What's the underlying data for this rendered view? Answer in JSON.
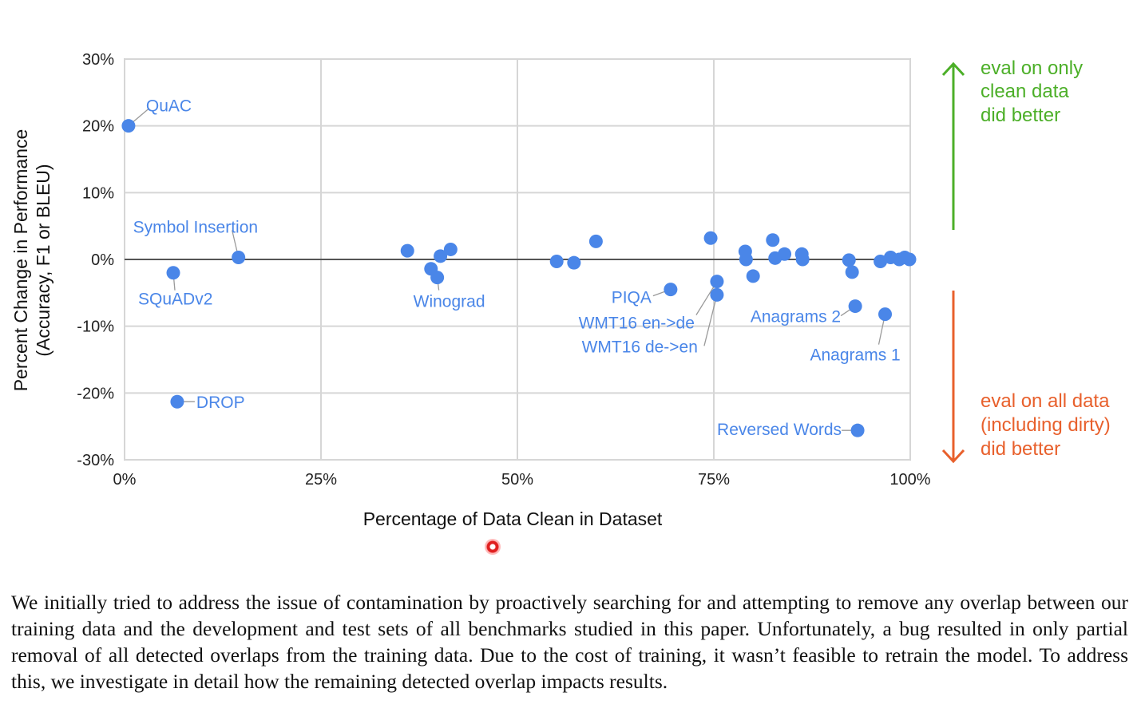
{
  "chart_data": {
    "type": "scatter",
    "xlabel": "Percentage of Data Clean in Dataset",
    "ylabel": "Percent Change in Performance",
    "ylabel2": "(Accuracy, F1 or BLEU)",
    "xlim": [
      0,
      100
    ],
    "ylim": [
      -30,
      30
    ],
    "x_ticks": [
      "0%",
      "25%",
      "50%",
      "75%",
      "100%"
    ],
    "y_ticks": [
      "30%",
      "20%",
      "10%",
      "0%",
      "-10%",
      "-20%",
      "-30%"
    ],
    "grid": true,
    "marker_color": "#4a86e8",
    "points": [
      {
        "x": 0.5,
        "y": 20.0,
        "label": "QuAC"
      },
      {
        "x": 14.5,
        "y": 0.3,
        "label": "Symbol Insertion"
      },
      {
        "x": 6.2,
        "y": -2.0,
        "label": "SQuADv2"
      },
      {
        "x": 6.7,
        "y": -21.3,
        "label": "DROP"
      },
      {
        "x": 36.0,
        "y": 1.3
      },
      {
        "x": 39.0,
        "y": -1.4
      },
      {
        "x": 39.8,
        "y": -2.7,
        "label": "Winograd"
      },
      {
        "x": 40.2,
        "y": 0.5
      },
      {
        "x": 41.5,
        "y": 1.5
      },
      {
        "x": 55.0,
        "y": -0.3
      },
      {
        "x": 57.2,
        "y": -0.5
      },
      {
        "x": 60.0,
        "y": 2.7
      },
      {
        "x": 69.5,
        "y": -4.5,
        "label": "PIQA"
      },
      {
        "x": 74.6,
        "y": 3.2
      },
      {
        "x": 75.4,
        "y": -3.3,
        "label": "WMT16 en->de"
      },
      {
        "x": 75.4,
        "y": -5.3,
        "label": "WMT16 de->en"
      },
      {
        "x": 79.0,
        "y": 1.2
      },
      {
        "x": 79.1,
        "y": 0.0
      },
      {
        "x": 80.0,
        "y": -2.5
      },
      {
        "x": 82.5,
        "y": 2.9
      },
      {
        "x": 82.8,
        "y": 0.2
      },
      {
        "x": 84.0,
        "y": 0.8
      },
      {
        "x": 86.2,
        "y": 0.8
      },
      {
        "x": 86.3,
        "y": 0.0
      },
      {
        "x": 92.2,
        "y": -0.1
      },
      {
        "x": 92.6,
        "y": -1.9
      },
      {
        "x": 93.0,
        "y": -7.0,
        "label": "Anagrams 2"
      },
      {
        "x": 96.2,
        "y": -0.3
      },
      {
        "x": 96.8,
        "y": -8.2,
        "label": "Anagrams 1"
      },
      {
        "x": 97.5,
        "y": 0.3
      },
      {
        "x": 98.6,
        "y": 0.0
      },
      {
        "x": 99.3,
        "y": 0.3
      },
      {
        "x": 99.9,
        "y": 0.0
      },
      {
        "x": 93.3,
        "y": -25.6,
        "label": "Reversed Words"
      }
    ]
  },
  "annotations": {
    "clean_better": [
      "eval on only",
      "clean data",
      "did better"
    ],
    "clean_better_color": "#4caf28",
    "all_better": [
      "eval on all data",
      "(including dirty)",
      "did better"
    ],
    "all_better_color": "#e8602c"
  },
  "paragraph": "We initially tried to address the issue of contamination by proactively searching for and attempting to remove any overlap between our training data and the development and test sets of all benchmarks studied in this paper. Unfortunately, a bug resulted in only partial removal of all detected overlaps from the training data. Due to the cost of training, it wasn’t feasible to retrain the model. To address this, we investigate in detail how the remaining detected overlap impacts results."
}
